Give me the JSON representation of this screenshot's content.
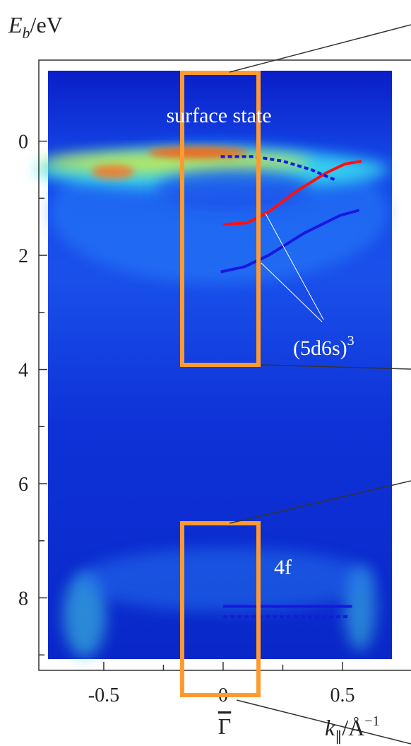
{
  "chart_data": {
    "type": "arpes",
    "y_label": {
      "main": "E",
      "sub": "b",
      "rest": "/eV"
    },
    "x_label": {
      "main": "k",
      "sub": "∥",
      "rest": "/Å",
      "sup": "−1"
    },
    "x_point_label": "Γ",
    "annotations": {
      "surface": "surface state",
      "bands": "(5d6s)",
      "bands_sup": "3",
      "f": "4f"
    },
    "xlim": [
      -0.772,
      0.79
    ],
    "ylim": [
      -1.42,
      9.27
    ],
    "y_inverted": true,
    "xticks": [
      -0.5,
      0,
      0.5
    ],
    "xminorticks": [
      -0.25,
      0.25
    ],
    "yticks": [
      0,
      2,
      4,
      6,
      8
    ],
    "yminorticks": [
      1,
      3,
      5,
      7,
      9
    ],
    "lines": [
      {
        "color": "#ff1010",
        "style": "solid",
        "x": [
          0,
          0.1,
          0.19,
          0.31,
          0.43,
          0.51,
          0.58
        ],
        "y": [
          1.46,
          1.43,
          1.24,
          0.87,
          0.56,
          0.4,
          0.35
        ]
      },
      {
        "color": "#1818e0",
        "style": "solid",
        "x": [
          -0.01,
          0.09,
          0.19,
          0.34,
          0.49,
          0.57
        ],
        "y": [
          2.29,
          2.2,
          2.0,
          1.61,
          1.3,
          1.21
        ]
      },
      {
        "color": "#1818e0",
        "style": "dotted",
        "x": [
          -0.01,
          0.13,
          0.25,
          0.37,
          0.47
        ],
        "y": [
          0.27,
          0.27,
          0.35,
          0.5,
          0.68
        ]
      },
      {
        "color": "#1818e0",
        "style": "solid",
        "x": [
          0,
          0.54
        ],
        "y": [
          8.15,
          8.15
        ]
      },
      {
        "color": "#1818e0",
        "style": "dotted",
        "x": [
          0,
          0.53
        ],
        "y": [
          8.33,
          8.33
        ]
      }
    ]
  }
}
